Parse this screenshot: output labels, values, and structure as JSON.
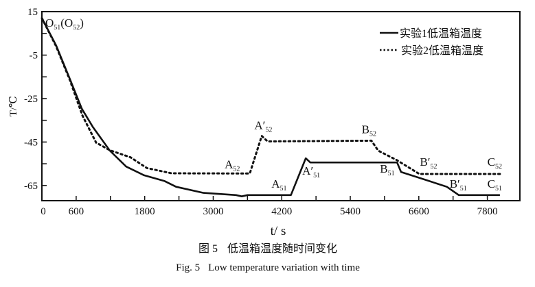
{
  "chart_data": {
    "type": "line",
    "xlabel": "t/ s",
    "ylabel": "T/℃",
    "xlim": [
      0,
      8370
    ],
    "ylim": [
      -72,
      15
    ],
    "x_ticks": [
      0,
      600,
      1800,
      3000,
      4200,
      5400,
      6600,
      7800
    ],
    "y_ticks": [
      15,
      -5,
      -25,
      -45,
      -65
    ],
    "grid": false,
    "legend_placement": "top-right",
    "series": [
      {
        "name": "实验1低温箱温度",
        "style": "solid",
        "x": [
          0,
          250,
          490,
          700,
          890,
          1190,
          1476,
          1790,
          2150,
          2350,
          2830,
          3400,
          3500,
          3600,
          4360,
          4620,
          4700,
          6220,
          6290,
          6730,
          7090,
          7300,
          8020
        ],
        "y": [
          12,
          -0.6,
          -16,
          -29.7,
          -38,
          -49,
          -56.3,
          -60.3,
          -63,
          -65.6,
          -68.4,
          -69.4,
          -70,
          -69.4,
          -69.4,
          -52.5,
          -54.4,
          -54.4,
          -58.8,
          -62.5,
          -65.6,
          -69.4,
          -69.4
        ]
      },
      {
        "name": "实验2低温箱温度",
        "style": "dotted",
        "x": [
          0,
          250,
          490,
          710,
          950,
          1190,
          1550,
          1840,
          2270,
          3640,
          3850,
          3950,
          5770,
          5890,
          6220,
          6610,
          8020
        ],
        "y": [
          12,
          -1,
          -16.5,
          -32.8,
          -45.3,
          -48.8,
          -52,
          -57,
          -59.4,
          -59.5,
          -42.2,
          -44.7,
          -44.4,
          -49,
          -53.4,
          -59.7,
          -59.7
        ]
      }
    ],
    "annotations": [
      {
        "text": "O",
        "sub": "51",
        "suffix": "(O",
        "sub2": "52",
        "end": ")",
        "x": 60,
        "y": 8
      },
      {
        "text": "A",
        "sub": "52",
        "x": 3200,
        "y": -57
      },
      {
        "text": "A′",
        "sub": "52",
        "x": 3720,
        "y": -39
      },
      {
        "text": "B",
        "sub": "52",
        "x": 5600,
        "y": -41
      },
      {
        "text": "A",
        "sub": "51",
        "x": 4020,
        "y": -66
      },
      {
        "text": "A′",
        "sub": "51",
        "x": 4560,
        "y": -60
      },
      {
        "text": "B",
        "sub": "51",
        "x": 5920,
        "y": -59
      },
      {
        "text": "B′",
        "sub": "52",
        "x": 6620,
        "y": -56
      },
      {
        "text": "C",
        "sub": "52",
        "x": 7800,
        "y": -56
      },
      {
        "text": "B′",
        "sub": "51",
        "x": 7140,
        "y": -66
      },
      {
        "text": "C",
        "sub": "51",
        "x": 7800,
        "y": -66
      }
    ]
  },
  "caption": {
    "cn_number": "图 5",
    "cn_title": "低温箱温度随时间变化",
    "en_number": "Fig. 5",
    "en_title": "Low temperature variation with time"
  }
}
